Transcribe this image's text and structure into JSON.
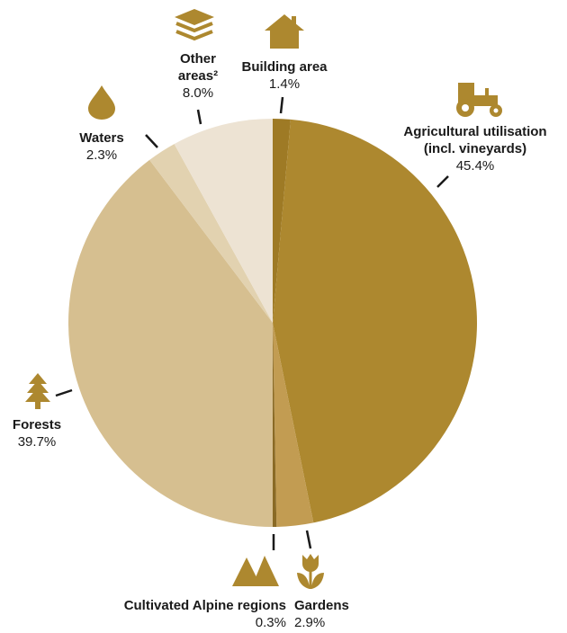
{
  "chart_data": {
    "type": "pie",
    "start": "top, clockwise",
    "slices": [
      {
        "label": "Building area",
        "value": 1.4,
        "value_label": "1.4%",
        "color": "#9e7a25",
        "icon": "house-icon"
      },
      {
        "label": "Agricultural utilisation (incl. vineyards)",
        "label_lines": [
          "Agricultural utilisation",
          "(incl. vineyards)"
        ],
        "value": 45.4,
        "value_label": "45.4%",
        "color": "#ad882f",
        "icon": "tractor-icon"
      },
      {
        "label": "Gardens",
        "value": 2.9,
        "value_label": "2.9%",
        "color": "#c29c52",
        "icon": "tulip-icon"
      },
      {
        "label": "Cultivated Alpine regions",
        "value": 0.3,
        "value_label": "0.3%",
        "color": "#8a6a25",
        "icon": "mountains-icon"
      },
      {
        "label": "Forests",
        "value": 39.7,
        "value_label": "39.7%",
        "color": "#d6bf90",
        "icon": "tree-icon"
      },
      {
        "label": "Waters",
        "value": 2.3,
        "value_label": "2.3%",
        "color": "#e2d2b0",
        "icon": "water-drop-icon"
      },
      {
        "label": "Other areas²",
        "label_lines": [
          "Other",
          "areas²"
        ],
        "value": 8.0,
        "value_label": "8.0%",
        "color": "#ede3d3",
        "icon": "layers-icon"
      }
    ]
  },
  "colors": {
    "icon": "#ad882f",
    "leader": "#1a1a1a"
  }
}
